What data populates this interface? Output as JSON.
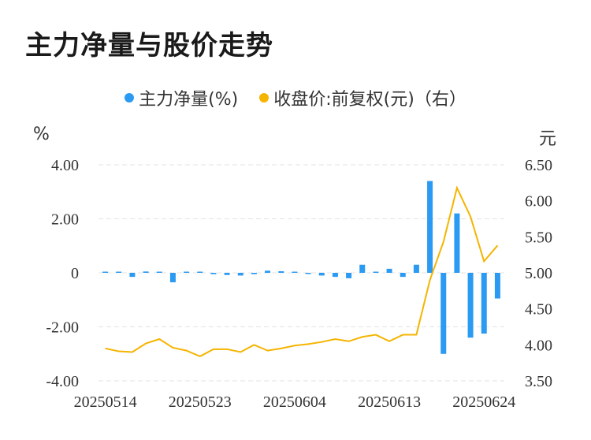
{
  "title": "主力净量与股价走势",
  "chart_data": {
    "type": "bar+line",
    "legend": [
      {
        "name": "主力净量(%)",
        "color": "#2b9af3"
      },
      {
        "name": "收盘价:前复权(元)（右）",
        "color": "#f5b400"
      }
    ],
    "left_unit": "%",
    "right_unit": "元",
    "left_ticks": [
      "4.00",
      "2.00",
      "0",
      "-2.00",
      "-4.00"
    ],
    "right_ticks": [
      "6.50",
      "6.00",
      "5.50",
      "5.00",
      "4.50",
      "4.00",
      "3.50"
    ],
    "left_ylim": [
      -4,
      4
    ],
    "right_ylim": [
      3.5,
      6.5
    ],
    "x_labels": [
      "20250514",
      "20250523",
      "20250604",
      "20250613",
      "20250624"
    ],
    "x_label_index": [
      0,
      7,
      14,
      21,
      28
    ],
    "net_volume_pct": [
      0.02,
      0.02,
      -0.15,
      0.05,
      0.02,
      -0.35,
      0.02,
      0.01,
      -0.05,
      -0.08,
      -0.1,
      -0.05,
      0.08,
      0.06,
      0.02,
      -0.02,
      -0.1,
      -0.15,
      -0.2,
      0.3,
      0.02,
      0.15,
      -0.15,
      0.3,
      3.4,
      -3.0,
      2.2,
      -2.4,
      -2.25,
      -0.95
    ],
    "close_price": [
      3.95,
      3.91,
      3.9,
      4.02,
      4.08,
      3.96,
      3.92,
      3.84,
      3.94,
      3.94,
      3.9,
      4.0,
      3.92,
      3.95,
      3.99,
      4.01,
      4.04,
      4.08,
      4.05,
      4.11,
      4.14,
      4.05,
      4.14,
      4.14,
      4.9,
      5.43,
      6.18,
      5.78,
      5.16,
      5.38
    ]
  }
}
